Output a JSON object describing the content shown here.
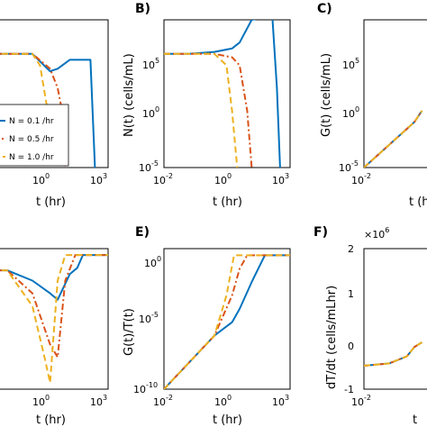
{
  "chart_data": [
    {
      "panel": "",
      "type": "line",
      "xlabel": "t (hr)",
      "ylabel": "",
      "xscale": "log",
      "yscale": "log",
      "xticks": [
        "10",
        "10",
        "10"
      ],
      "xtick_exp": [
        "",
        "0",
        "3"
      ],
      "yticks": [],
      "legend": {
        "placement": "bottom-left",
        "entries": [
          "N = 0.1 /hr",
          "N = 0.5 /hr",
          "N = 1.0 /hr"
        ]
      },
      "series": [
        {
          "color": "#0072BD",
          "style": "solid",
          "x": [
            0.01,
            0.1,
            1,
            5,
            10,
            30,
            80,
            200,
            300
          ],
          "y": [
            100000.0,
            100000.0,
            100000.0,
            3000.0,
            5000.0,
            30000.0,
            30000.0,
            30000.0,
            1e-05
          ]
        },
        {
          "color": "#D95319",
          "style": "dashdot",
          "x": [
            0.01,
            0.1,
            1,
            5,
            10,
            15,
            20
          ],
          "y": [
            100000.0,
            100000.0,
            100000.0,
            5000.0,
            100.0,
            1.0,
            1e-05
          ]
        },
        {
          "color": "#EDB120",
          "style": "dashed",
          "x": [
            0.01,
            0.1,
            1,
            2,
            4,
            6
          ],
          "y": [
            100000.0,
            100000.0,
            100000.0,
            10000.0,
            1.0,
            1e-05
          ]
        }
      ]
    },
    {
      "panel": "B)",
      "type": "line",
      "xlabel": "t (hr)",
      "ylabel": "N(t) (cells/mL)",
      "xscale": "log",
      "yscale": "log",
      "xlim": [
        0.01,
        1000
      ],
      "ylim": [
        1e-05,
        100000000.0
      ],
      "xticks": [
        "10",
        "10",
        "10"
      ],
      "xtick_exp": [
        "-2",
        "0",
        "3"
      ],
      "yticks": [
        "10",
        "10",
        "10"
      ],
      "ytick_exp": [
        "5",
        "0",
        "-5"
      ],
      "series": [
        {
          "color": "#0072BD",
          "style": "solid",
          "x": [
            0.01,
            0.1,
            1,
            5,
            10,
            30,
            80,
            200,
            300,
            400
          ],
          "y": [
            100000.0,
            100000.0,
            150000.0,
            300000.0,
            1000000.0,
            100000000.0,
            150000000.0,
            150000000.0,
            100.0,
            1e-05
          ]
        },
        {
          "color": "#D95319",
          "style": "dashdot",
          "x": [
            0.01,
            0.1,
            1,
            5,
            10,
            20,
            30
          ],
          "y": [
            100000.0,
            100000.0,
            100000.0,
            50000.0,
            10000.0,
            1.0,
            1e-05
          ]
        },
        {
          "color": "#EDB120",
          "style": "dashed",
          "x": [
            0.01,
            0.1,
            1,
            3,
            5,
            8
          ],
          "y": [
            100000.0,
            100000.0,
            100000.0,
            10000.0,
            1.0,
            1e-05
          ]
        }
      ]
    },
    {
      "panel": "C)",
      "type": "line",
      "xlabel": "t (hr)",
      "ylabel": "G(t) (cells/mL)",
      "xscale": "log",
      "yscale": "log",
      "xticks": [
        "10"
      ],
      "xtick_exp": [
        "-2"
      ],
      "yticks": [
        "10",
        "10",
        "10"
      ],
      "ytick_exp": [
        "5",
        "0",
        "-5"
      ],
      "series": [
        {
          "color": "#0072BD",
          "style": "solid",
          "x": [
            0.01,
            0.1,
            1,
            2
          ],
          "y": [
            1e-05,
            0.001,
            0.1,
            1.0
          ]
        },
        {
          "color": "#D95319",
          "style": "dashdot",
          "x": [
            0.01,
            0.1,
            1,
            2
          ],
          "y": [
            1e-05,
            0.001,
            0.1,
            1.0
          ]
        },
        {
          "color": "#EDB120",
          "style": "dashed",
          "x": [
            0.01,
            0.1,
            1,
            2
          ],
          "y": [
            1e-05,
            0.001,
            0.1,
            1.0
          ]
        }
      ]
    },
    {
      "panel": "",
      "type": "line",
      "xlabel": "t (hr)",
      "ylabel": "",
      "xscale": "log",
      "xticks": [
        "10",
        "10"
      ],
      "xtick_exp": [
        "0",
        "3"
      ],
      "series": [
        {
          "color": "#0072BD",
          "style": "solid",
          "x": [
            0.01,
            0.1,
            1,
            5,
            10,
            30,
            60,
            100,
            1000
          ],
          "y": [
            0.88,
            0.88,
            0.8,
            0.7,
            0.65,
            0.85,
            0.9,
            1,
            1
          ]
        },
        {
          "color": "#D95319",
          "style": "dashdot",
          "x": [
            0.01,
            0.1,
            1,
            5,
            10,
            20,
            50,
            1000
          ],
          "y": [
            0.88,
            0.88,
            0.7,
            0.3,
            0.2,
            0.8,
            1,
            1
          ]
        },
        {
          "color": "#EDB120",
          "style": "dashed",
          "x": [
            0.01,
            0.1,
            1,
            3,
            5,
            10,
            20,
            1000
          ],
          "y": [
            0.88,
            0.88,
            0.6,
            0.2,
            0.0,
            0.8,
            1,
            1
          ]
        }
      ]
    },
    {
      "panel": "E)",
      "type": "line",
      "xlabel": "t (hr)",
      "ylabel": "G(t)/T(t)",
      "xscale": "log",
      "yscale": "log",
      "xlim": [
        0.01,
        1000
      ],
      "ylim": [
        1e-10,
        1.0
      ],
      "xticks": [
        "10",
        "10",
        "10"
      ],
      "xtick_exp": [
        "-2",
        "0",
        "3"
      ],
      "yticks": [
        "10",
        "10",
        "10"
      ],
      "ytick_exp": [
        "0",
        "-5",
        "-10"
      ],
      "series": [
        {
          "color": "#0072BD",
          "style": "solid",
          "x": [
            0.01,
            0.1,
            1,
            5,
            10,
            30,
            100,
            1000
          ],
          "y": [
            1e-10,
            1e-08,
            1e-06,
            1e-05,
            0.0001,
            0.01,
            1,
            1
          ]
        },
        {
          "color": "#D95319",
          "style": "dashdot",
          "x": [
            0.01,
            0.1,
            1,
            5,
            10,
            20,
            1000
          ],
          "y": [
            1e-10,
            1e-08,
            1e-06,
            0.001,
            0.1,
            1,
            1
          ]
        },
        {
          "color": "#EDB120",
          "style": "dashed",
          "x": [
            0.01,
            0.1,
            1,
            3,
            6,
            1000
          ],
          "y": [
            1e-10,
            1e-08,
            1e-06,
            0.001,
            1,
            1
          ]
        }
      ]
    },
    {
      "panel": "F)",
      "type": "line",
      "xlabel": "t",
      "ylabel": "dT/dt (cells/mLhr)",
      "xscale": "log",
      "xticks": [
        "10"
      ],
      "xtick_exp": [
        "-2"
      ],
      "yticks": [
        "2",
        "1",
        "0",
        "-1"
      ],
      "y_multiplier": "×10",
      "y_multiplier_exp": "6",
      "series": [
        {
          "color": "#0072BD",
          "style": "solid",
          "x": [
            0.01,
            0.1,
            0.5,
            1,
            2
          ],
          "y": [
            -0.5,
            -0.45,
            -0.3,
            -0.1,
            0.0
          ]
        },
        {
          "color": "#D95319",
          "style": "dashdot",
          "x": [
            0.01,
            0.1,
            0.5,
            1,
            2
          ],
          "y": [
            -0.5,
            -0.45,
            -0.3,
            -0.1,
            0.0
          ]
        },
        {
          "color": "#EDB120",
          "style": "dashed",
          "x": [
            0.01,
            0.1,
            0.5,
            1,
            2
          ],
          "y": [
            -0.5,
            -0.45,
            -0.3,
            -0.1,
            0.0
          ]
        }
      ]
    }
  ]
}
